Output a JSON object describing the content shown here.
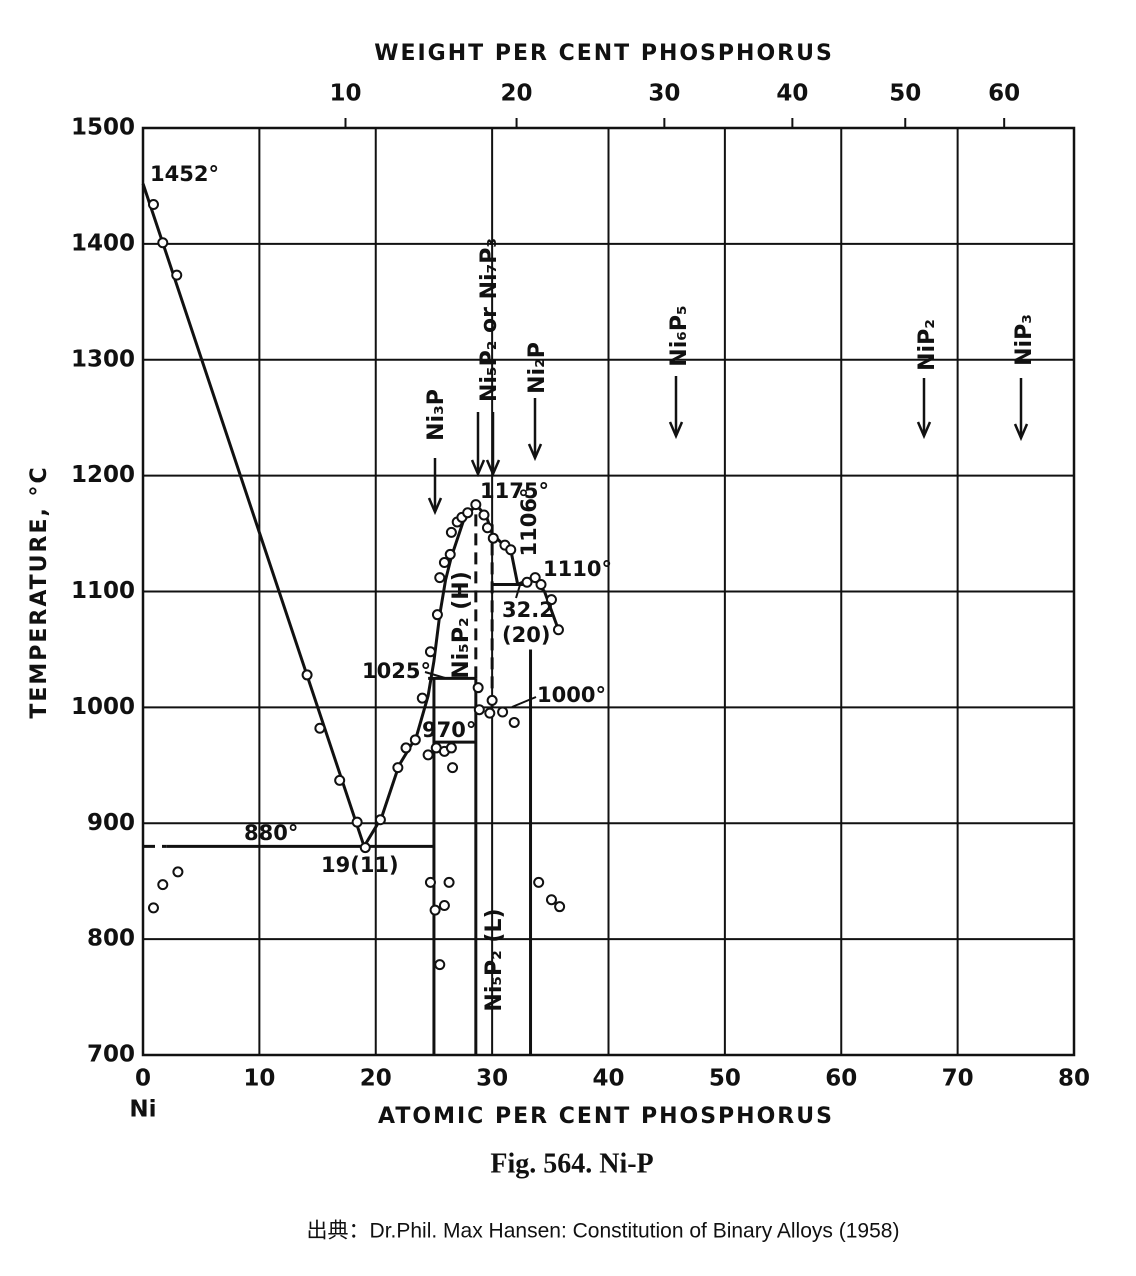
{
  "chart_data": {
    "type": "phase-diagram",
    "title": "Fig. 564. Ni-P",
    "source": "出典：Dr.Phil. Max Hansen: Constitution of Binary Alloys (1958)",
    "xlabel": "ATOMIC PER CENT PHOSPHORUS",
    "x2label": "WEIGHT PER CENT PHOSPHORUS",
    "ylabel": "TEMPERATURE, °C",
    "origin_label": "Ni",
    "xlim": [
      0,
      80
    ],
    "xticks": [
      0,
      10,
      20,
      30,
      40,
      50,
      60,
      70,
      80
    ],
    "x2ticks": [
      {
        "value": 17.4,
        "label": "10"
      },
      {
        "value": 32.1,
        "label": "20"
      },
      {
        "value": 44.8,
        "label": "30"
      },
      {
        "value": 55.8,
        "label": "40"
      },
      {
        "value": 65.5,
        "label": "50"
      },
      {
        "value": 74.0,
        "label": "60"
      }
    ],
    "ylim": [
      700,
      1500
    ],
    "yticks": [
      700,
      800,
      900,
      1000,
      1100,
      1200,
      1300,
      1400,
      1500
    ],
    "grid": true,
    "color": "#111111",
    "lines": [
      {
        "x": [
          0,
          19,
          20.5,
          22,
          23.5,
          24.5,
          25,
          25.5,
          26,
          26.5,
          27.5,
          28.6
        ],
        "values": [
          1452,
          880,
          905,
          950,
          975,
          1010,
          1040,
          1080,
          1110,
          1130,
          1160,
          1175
        ],
        "dash": false
      },
      {
        "x": [
          28.6,
          29.5,
          30,
          31,
          31.6,
          32.2
        ],
        "values": [
          1175,
          1165,
          1150,
          1140,
          1136,
          1106
        ],
        "dash": false
      },
      {
        "x": [
          32.2,
          33.5,
          34.5,
          35.7
        ],
        "values": [
          1106,
          1112,
          1100,
          1067
        ],
        "dash": false
      },
      {
        "x": [
          0,
          2
        ],
        "values": [
          880,
          880
        ],
        "dash": true
      },
      {
        "x": [
          2,
          25
        ],
        "values": [
          880,
          880
        ],
        "dash": false
      },
      {
        "x": [
          25,
          25
        ],
        "values": [
          700,
          1025
        ],
        "dash": false
      },
      {
        "x": [
          24.5,
          28.6
        ],
        "values": [
          1025,
          1025
        ],
        "dash": false
      },
      {
        "x": [
          25,
          28.6
        ],
        "values": [
          970,
          970
        ],
        "dash": false
      },
      {
        "x": [
          28.6,
          28.6
        ],
        "values": [
          700,
          1025
        ],
        "dash": false
      },
      {
        "x": [
          28.6,
          28.6
        ],
        "values": [
          1025,
          1175
        ],
        "dash": true
      },
      {
        "x": [
          30,
          30
        ],
        "values": [
          1000,
          1160
        ],
        "dash": true
      },
      {
        "x": [
          30,
          33.3
        ],
        "values": [
          1106,
          1106
        ],
        "dash": false
      },
      {
        "x": [
          33.3,
          33.3
        ],
        "values": [
          700,
          1050
        ],
        "dash": false
      }
    ],
    "points": {
      "x": [
        0.9,
        1.7,
        2.9,
        14.1,
        15.2,
        16.9,
        18.4,
        19.1,
        20.4,
        21.9,
        22.6,
        23.4,
        24,
        24.7,
        25.3,
        25.5,
        25.9,
        26.4,
        26.5,
        27,
        27.4,
        27.9,
        28.6,
        29.3,
        29.6,
        30.1,
        31.1,
        31.6,
        33,
        33.7,
        34.2,
        35.1,
        35.7,
        28.8,
        28.9,
        30,
        29.8,
        30.9,
        31.9,
        24.5,
        25.2,
        25.9,
        26.5,
        26.6,
        0.9,
        1.7,
        3,
        24.7,
        25.1,
        25.9,
        26.3,
        25.5,
        34,
        35.1,
        35.8
      ],
      "values": [
        1434,
        1401,
        1373,
        1028,
        982,
        937,
        901,
        879,
        903,
        948,
        965,
        972,
        1008,
        1048,
        1080,
        1112,
        1125,
        1132,
        1151,
        1160,
        1164,
        1168,
        1175,
        1166,
        1155,
        1146,
        1140,
        1136,
        1108,
        1112,
        1106,
        1093,
        1067,
        1017,
        998,
        1006,
        995,
        996,
        987,
        959,
        965,
        962,
        965,
        948,
        827,
        847,
        858,
        849,
        825,
        829,
        849,
        778,
        849,
        834,
        828
      ]
    },
    "annotations": [
      "1452°",
      "1175°",
      "1106°",
      "1110°",
      "32.2",
      "(20)",
      "1025°",
      "970°",
      "1000°",
      "880°",
      "19(11)"
    ],
    "phases": [
      "Ni₃P",
      "Ni₅P₂ or Ni₇P₃",
      "Ni₂P",
      "Ni₆P₅",
      "NiP₂",
      "NiP₃",
      "Ni₅P₂ (H)",
      "Ni₅P₂ (L)"
    ]
  }
}
